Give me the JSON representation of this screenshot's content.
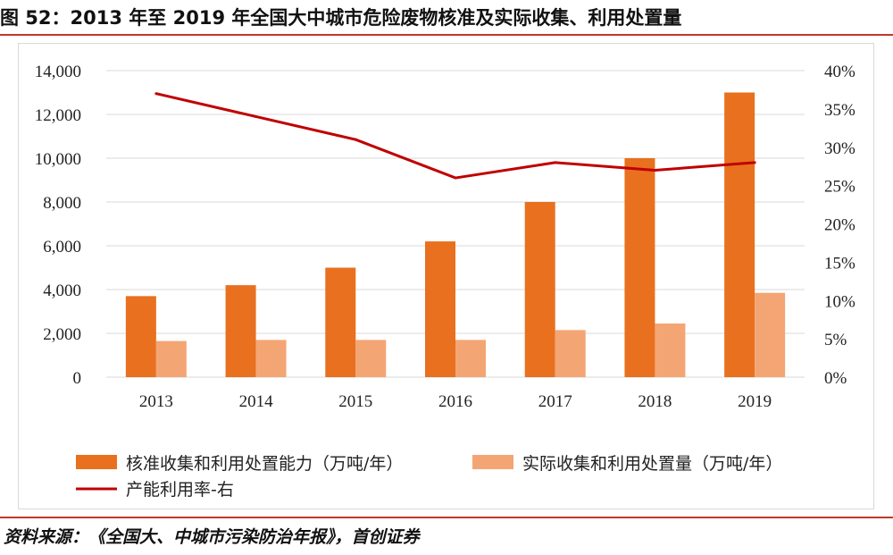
{
  "figure": {
    "title": "图 52：2013 年至 2019 年全国大中城市危险废物核准及实际收集、利用处置量",
    "source": "资料来源：《全国大、中城市污染防治年报》，首创证券"
  },
  "colors": {
    "rule": "#c0392b",
    "series_capacity": "#e8701f",
    "series_actual": "#f4a574",
    "series_rate": "#c00000"
  },
  "chart_data": {
    "type": "bar",
    "categories": [
      "2013",
      "2014",
      "2015",
      "2016",
      "2017",
      "2018",
      "2019"
    ],
    "series": [
      {
        "name": "核准收集和利用处置能力（万吨/年）",
        "kind": "bar",
        "axis": "left",
        "values": [
          3700,
          4200,
          5000,
          6200,
          8000,
          10000,
          13000
        ]
      },
      {
        "name": "实际收集和利用处置量（万吨/年）",
        "kind": "bar",
        "axis": "left",
        "values": [
          1650,
          1700,
          1700,
          1700,
          2150,
          2450,
          3850
        ]
      },
      {
        "name": "产能利用率-右",
        "kind": "line",
        "axis": "right",
        "values": [
          0.37,
          0.34,
          0.31,
          0.26,
          0.28,
          0.27,
          0.28
        ]
      }
    ],
    "left_axis": {
      "ylim": [
        0,
        14000
      ],
      "tick_labels": [
        "0",
        "2,000",
        "4,000",
        "6,000",
        "8,000",
        "10,000",
        "12,000",
        "14,000"
      ]
    },
    "right_axis": {
      "ylim": [
        0,
        0.4
      ],
      "tick_labels": [
        "0%",
        "5%",
        "10%",
        "15%",
        "20%",
        "25%",
        "30%",
        "35%",
        "40%"
      ]
    },
    "grid": true,
    "legend_position": "bottom"
  }
}
